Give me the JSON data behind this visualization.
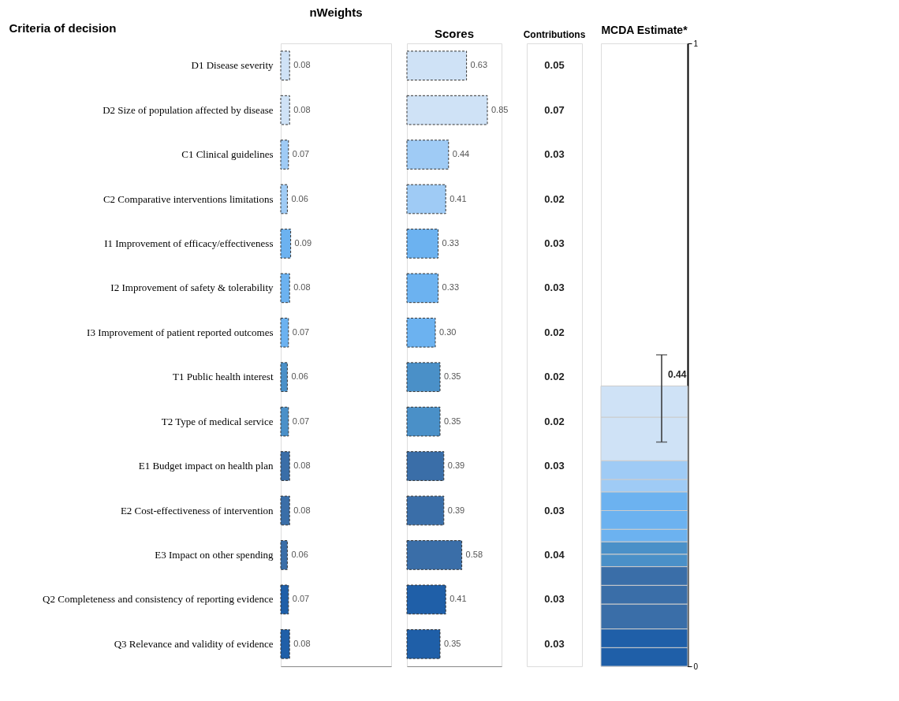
{
  "chart_data": [
    {
      "type": "bar",
      "title": "nWeights",
      "ylabel": "Criteria of decision",
      "orientation": "horizontal",
      "xlim": [
        0,
        1
      ],
      "tick_labels": "y",
      "value_labels": [
        "0.08",
        "0.08",
        "0.07",
        "0.06",
        "0.09",
        "0.08",
        "0.07",
        "0.06",
        "0.07",
        "0.08",
        "0.08",
        "0.06",
        "0.07",
        "0.08"
      ],
      "categories": [
        "D1   Disease severity",
        "D2   Size of population affected by disease",
        "C1   Clinical guidelines",
        "C2   Comparative interventions limitations",
        "I1   Improvement of efficacy/effectiveness",
        "I2   Improvement of safety & tolerability",
        "I3   Improvement of patient reported outcomes",
        "T1   Public health interest",
        "T2   Type of medical service",
        "E1   Budget impact on health plan",
        "E2   Cost-effectiveness of intervention",
        "E3   Impact on other spending",
        "Q2   Completeness and consistency of reporting evidence",
        "Q3   Relevance and validity of evidence"
      ],
      "values": [
        0.08,
        0.08,
        0.07,
        0.06,
        0.09,
        0.08,
        0.07,
        0.06,
        0.07,
        0.08,
        0.08,
        0.06,
        0.07,
        0.08
      ],
      "colors": [
        "#cfe2f6",
        "#cfe2f6",
        "#9fcbf5",
        "#9fcbf5",
        "#6cb2f0",
        "#6cb2f0",
        "#6cb2f0",
        "#4a90c8",
        "#4a90c8",
        "#3a6ea8",
        "#3a6ea8",
        "#3a6ea8",
        "#1f5fa8",
        "#1f5fa8"
      ]
    },
    {
      "type": "bar",
      "title": "Scores",
      "orientation": "horizontal",
      "xlim": [
        0,
        1
      ],
      "tick_labels": false,
      "value_labels": [
        "0.63",
        "0.85",
        "0.44",
        "0.41",
        "0.33",
        "0.33",
        "0.30",
        "0.35",
        "0.35",
        "0.39",
        "0.39",
        "0.58",
        "0.41",
        "0.35"
      ],
      "values": [
        0.63,
        0.85,
        0.44,
        0.41,
        0.33,
        0.33,
        0.3,
        0.35,
        0.35,
        0.39,
        0.39,
        0.58,
        0.41,
        0.35
      ],
      "colors": [
        "#cfe2f6",
        "#cfe2f6",
        "#9fcbf5",
        "#9fcbf5",
        "#6cb2f0",
        "#6cb2f0",
        "#6cb2f0",
        "#4a90c8",
        "#4a90c8",
        "#3a6ea8",
        "#3a6ea8",
        "#3a6ea8",
        "#1f5fa8",
        "#1f5fa8"
      ]
    },
    {
      "type": "other",
      "title": "Contributions",
      "values": [
        0.05,
        0.07,
        0.03,
        0.02,
        0.03,
        0.03,
        0.02,
        0.02,
        0.02,
        0.03,
        0.03,
        0.04,
        0.03,
        0.03
      ],
      "value_labels": [
        "0.05",
        "0.07",
        "0.03",
        "0.02",
        "0.03",
        "0.03",
        "0.02",
        "0.02",
        "0.02",
        "0.03",
        "0.03",
        "0.04",
        "0.03",
        "0.03"
      ]
    },
    {
      "type": "bar",
      "title": "MCDA Estimate*",
      "stacked": true,
      "categories": [
        null
      ],
      "ylim": [
        0,
        1
      ],
      "yticks": [
        {
          "value": 0,
          "label": "0"
        },
        {
          "value": 1,
          "label": "1"
        }
      ],
      "totals": [
        "0.44"
      ],
      "series": [
        {
          "color": "#1f5fa8",
          "values": [
            0.03
          ]
        },
        {
          "color": "#1f5fa8",
          "values": [
            0.03
          ]
        },
        {
          "color": "#3a6ea8",
          "values": [
            0.04
          ]
        },
        {
          "color": "#3a6ea8",
          "values": [
            0.03
          ]
        },
        {
          "color": "#3a6ea8",
          "values": [
            0.03
          ]
        },
        {
          "color": "#4a90c8",
          "values": [
            0.02
          ]
        },
        {
          "color": "#4a90c8",
          "values": [
            0.02
          ]
        },
        {
          "color": "#6cb2f0",
          "values": [
            0.02
          ]
        },
        {
          "color": "#6cb2f0",
          "values": [
            0.03
          ]
        },
        {
          "color": "#6cb2f0",
          "values": [
            0.03
          ]
        },
        {
          "color": "#9fcbf5",
          "values": [
            0.02
          ]
        },
        {
          "color": "#9fcbf5",
          "values": [
            0.03
          ]
        },
        {
          "color": "#cfe2f6",
          "values": [
            0.07
          ]
        },
        {
          "color": "#cfe2f6",
          "values": [
            0.05
          ],
          "errors": [
            [
              0.36,
              0.5
            ]
          ]
        }
      ]
    }
  ]
}
